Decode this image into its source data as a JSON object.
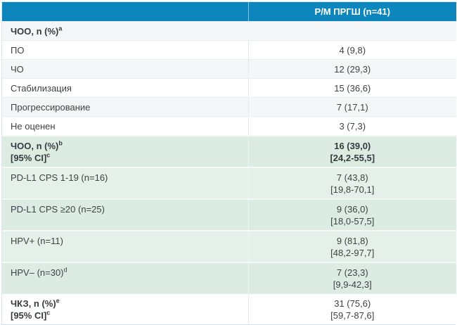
{
  "colors": {
    "header_blue": "#0d86bd",
    "header_text": "#ffffff",
    "stripe_gray": "#f5f6f7",
    "highlight_green_dark": "#dcece3",
    "highlight_green_light": "#e4f0e9",
    "body_text": "#3e4144"
  },
  "table": {
    "header": {
      "col1": "",
      "col2": "Р/М ПРГШ (n=41)"
    },
    "rows": [
      {
        "label": "ЧОО, n (%)",
        "sup": "a",
        "value": ""
      },
      {
        "label": "ПО",
        "value": "4 (9,8)"
      },
      {
        "label": "ЧО",
        "value": "12 (29,3)"
      },
      {
        "label": "Стабилизация",
        "value": "15 (36,6)"
      },
      {
        "label": "Прогрессирование",
        "value": "7 (17,1)"
      },
      {
        "label": "Не оценен",
        "value": "3 (7,3)"
      },
      {
        "label_line1": "ЧОО, n (%)",
        "sup1": "b",
        "label_line2": "[95% CI]",
        "sup2": "c",
        "value_line1": "16 (39,0)",
        "value_line2": "[24,2-55,5]"
      },
      {
        "label": "PD-L1 CPS 1-19 (n=16)",
        "value_line1": "7 (43,8)",
        "value_line2": "[19,8-70,1]"
      },
      {
        "label": "PD-L1 CPS ≥20 (n=25)",
        "value_line1": "9 (36,0)",
        "value_line2": "[18,0-57,5]"
      },
      {
        "label": "HPV+ (n=11)",
        "value_line1": "9 (81,8)",
        "value_line2": "[48,2-97,7]"
      },
      {
        "label": "HPV– (n=30)",
        "sup": "d",
        "value_line1": "7 (23,3)",
        "value_line2": "[9,9-42,3]"
      },
      {
        "label_line1": "ЧКЗ, n (%)",
        "sup1": "e",
        "label_line2": "[95% CI]",
        "sup2": "c",
        "value_line1": "31 (75,6)",
        "value_line2": "[59,7-87,6]"
      }
    ]
  }
}
